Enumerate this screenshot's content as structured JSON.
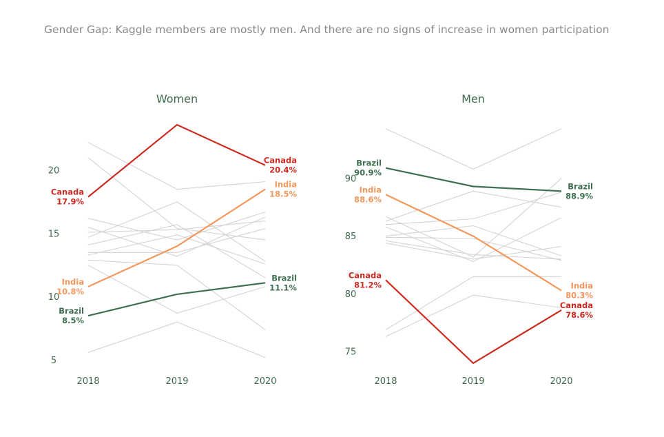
{
  "title": "Gender Gap: Kaggle members are mostly men. And there are no signs of increase in women participation",
  "colors": {
    "canada": "#cc2a1f",
    "india": "#f4975d",
    "brazil": "#3d7050",
    "background_lines": "#d3d3d3",
    "axis_text": "#3f6b4d",
    "title": "#8a8a8a"
  },
  "chart_data": [
    {
      "type": "line",
      "title": "Women",
      "x": [
        "2018",
        "2019",
        "2020"
      ],
      "ylim": [
        4.2,
        24.2
      ],
      "yticks": [
        5,
        10,
        15,
        20
      ],
      "grid": false,
      "legend": "none",
      "highlight_series": [
        {
          "name": "Canada",
          "color_key": "canada",
          "values": [
            17.9,
            23.6,
            20.4
          ],
          "start_label": "17.9%",
          "end_label": "20.4%"
        },
        {
          "name": "India",
          "color_key": "india",
          "values": [
            10.8,
            14.0,
            18.5
          ],
          "start_label": "10.8%",
          "end_label": "18.5%"
        },
        {
          "name": "Brazil",
          "color_key": "brazil",
          "values": [
            8.5,
            10.2,
            11.1
          ],
          "start_label": "8.5%",
          "end_label": "11.1%"
        }
      ],
      "background_series": [
        [
          22.2,
          18.5,
          19.1
        ],
        [
          21.0,
          15.4,
          14.5
        ],
        [
          16.2,
          14.5,
          16.7
        ],
        [
          15.5,
          13.2,
          16.3
        ],
        [
          15.1,
          15.3,
          16.0
        ],
        [
          14.7,
          17.5,
          12.8
        ],
        [
          14.1,
          15.7,
          11.5
        ],
        [
          13.5,
          13.5,
          15.4
        ],
        [
          13.3,
          14.9,
          12.6
        ],
        [
          12.9,
          12.5,
          7.4
        ],
        [
          12.5,
          8.7,
          10.8
        ],
        [
          5.6,
          8.0,
          5.2
        ]
      ]
    },
    {
      "type": "line",
      "title": "Men",
      "x": [
        "2018",
        "2019",
        "2020"
      ],
      "ylim": [
        73.4,
        95.3
      ],
      "yticks": [
        75,
        80,
        85,
        90
      ],
      "grid": false,
      "legend": "none",
      "highlight_series": [
        {
          "name": "Brazil",
          "color_key": "brazil",
          "values": [
            90.9,
            89.3,
            88.9
          ],
          "start_label": "90.9%",
          "end_label": "88.9%"
        },
        {
          "name": "India",
          "color_key": "india",
          "values": [
            88.6,
            85.0,
            80.3
          ],
          "start_label": "88.6%",
          "end_label": "80.3%"
        },
        {
          "name": "Canada",
          "color_key": "canada",
          "values": [
            81.2,
            74.0,
            78.6
          ],
          "start_label": "81.2%",
          "end_label": "78.6%"
        }
      ],
      "background_series": [
        [
          94.3,
          90.8,
          94.3
        ],
        [
          86.3,
          88.9,
          87.5
        ],
        [
          86.0,
          86.5,
          88.8
        ],
        [
          85.0,
          85.9,
          83.3
        ],
        [
          84.9,
          84.8,
          82.9
        ],
        [
          84.6,
          83.4,
          83.0
        ],
        [
          84.4,
          83.0,
          84.1
        ],
        [
          85.8,
          82.8,
          86.6
        ],
        [
          86.7,
          83.2,
          90.0
        ],
        [
          76.9,
          81.5,
          81.5
        ],
        [
          76.3,
          79.9,
          78.8
        ]
      ]
    }
  ]
}
